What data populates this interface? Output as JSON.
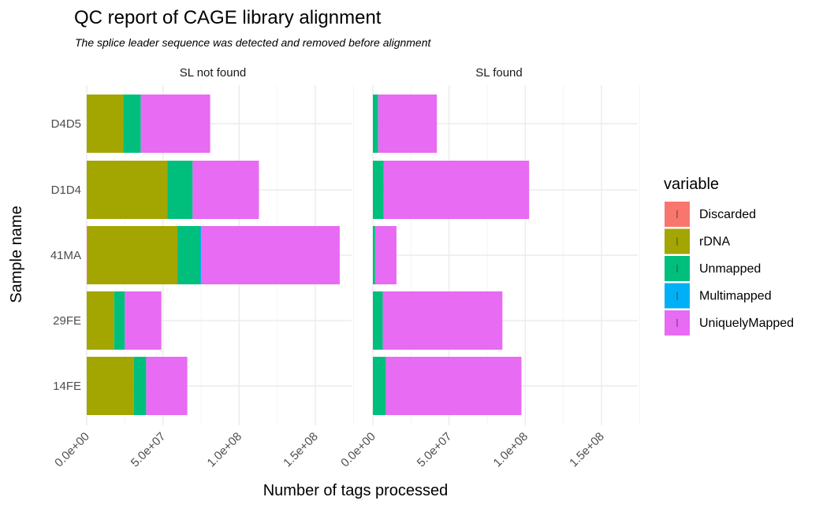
{
  "chart_data": {
    "type": "bar",
    "orientation": "horizontal",
    "stacked": true,
    "title": "QC report of CAGE library alignment",
    "subtitle": "The splice leader sequence was detected and removed before alignment",
    "xlabel": "Number of tags processed",
    "ylabel": "Sample name",
    "xlim": [
      0,
      180000000
    ],
    "x_ticks": [
      0,
      50000000,
      100000000,
      150000000
    ],
    "x_tick_labels": [
      "0.0e+00",
      "5.0e+07",
      "1.0e+08",
      "1.5e+08"
    ],
    "categories": [
      "14FE",
      "29FE",
      "41MA",
      "D1D4",
      "D4D5"
    ],
    "legend": {
      "title": "variable",
      "position": "right",
      "entries": [
        "Discarded",
        "rDNA",
        "Unmapped",
        "Multimapped",
        "UniquelyMapped"
      ]
    },
    "colors": {
      "Discarded": "#F8766D",
      "rDNA": "#A3A500",
      "Unmapped": "#00BF7D",
      "Multimapped": "#00B0F6",
      "UniquelyMapped": "#E76BF3"
    },
    "grid": true,
    "panels": [
      {
        "label": "SL not found",
        "series": [
          {
            "name": "Discarded",
            "values": [
              0,
              0,
              500000,
              0,
              0
            ]
          },
          {
            "name": "rDNA",
            "values": [
              31000000,
              18000000,
              59000000,
              53000000,
              24000000
            ]
          },
          {
            "name": "Unmapped",
            "values": [
              8000000,
              7000000,
              15000000,
              16500000,
              11500000
            ]
          },
          {
            "name": "Multimapped",
            "values": [
              0,
              0,
              500000,
              0,
              0
            ]
          },
          {
            "name": "UniquelyMapped",
            "values": [
              27000000,
              24000000,
              91000000,
              43500000,
              45500000
            ]
          }
        ]
      },
      {
        "label": "SL found",
        "series": [
          {
            "name": "Discarded",
            "values": [
              0,
              0,
              0,
              0,
              0
            ]
          },
          {
            "name": "rDNA",
            "values": [
              0,
              0,
              0,
              0,
              0
            ]
          },
          {
            "name": "Unmapped",
            "values": [
              8500000,
              6500000,
              1500000,
              7000000,
              3500000
            ]
          },
          {
            "name": "Multimapped",
            "values": [
              0,
              0,
              0,
              0,
              0
            ]
          },
          {
            "name": "UniquelyMapped",
            "values": [
              89000000,
              78500000,
              14000000,
              95500000,
              38500000
            ]
          }
        ]
      }
    ]
  }
}
